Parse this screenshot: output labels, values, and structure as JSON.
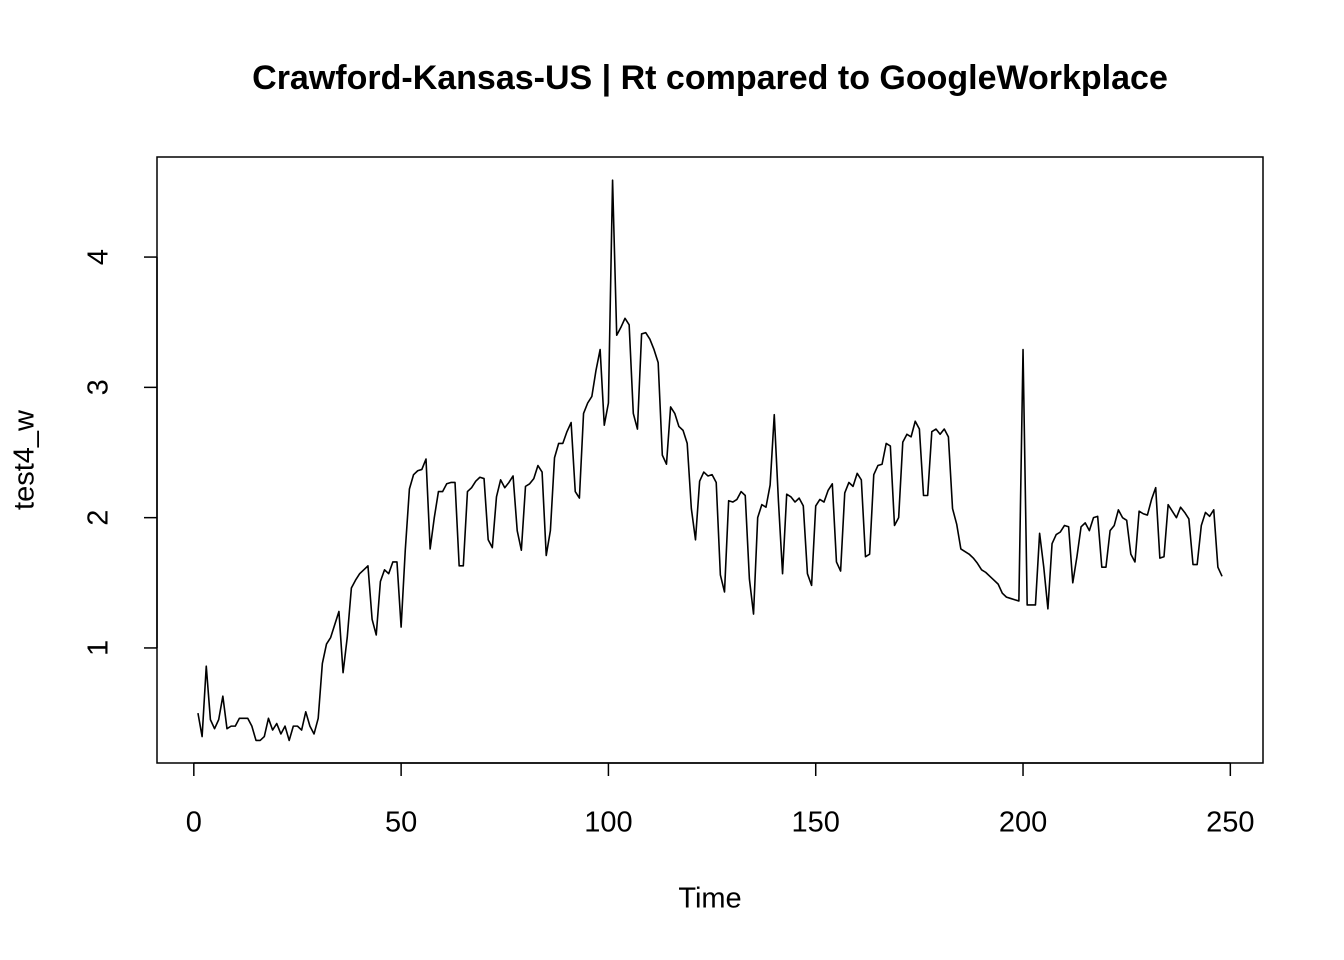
{
  "chart_data": {
    "type": "line",
    "title": "Crawford-Kansas-US | Rt compared to GoogleWorkplace",
    "xlabel": "Time",
    "ylabel": "test4_w",
    "color": "#000000",
    "xlim": [
      -8.88,
      257.88
    ],
    "ylim": [
      0.117,
      4.768
    ],
    "xticks": [
      0,
      50,
      100,
      150,
      200,
      250
    ],
    "yticks": [
      1,
      2,
      3,
      4
    ],
    "x": [
      1,
      2,
      3,
      4,
      5,
      6,
      7,
      8,
      9,
      10,
      11,
      12,
      13,
      14,
      15,
      16,
      17,
      18,
      19,
      20,
      21,
      22,
      23,
      24,
      25,
      26,
      27,
      28,
      29,
      30,
      31,
      32,
      33,
      34,
      35,
      36,
      37,
      38,
      39,
      40,
      41,
      42,
      43,
      44,
      45,
      46,
      47,
      48,
      49,
      50,
      51,
      52,
      53,
      54,
      55,
      56,
      57,
      58,
      59,
      60,
      61,
      62,
      63,
      64,
      65,
      66,
      67,
      68,
      69,
      70,
      71,
      72,
      73,
      74,
      75,
      76,
      77,
      78,
      79,
      80,
      81,
      82,
      83,
      84,
      85,
      86,
      87,
      88,
      89,
      90,
      91,
      92,
      93,
      94,
      95,
      96,
      97,
      98,
      99,
      100,
      101,
      102,
      103,
      104,
      105,
      106,
      107,
      108,
      109,
      110,
      111,
      112,
      113,
      114,
      115,
      116,
      117,
      118,
      119,
      120,
      121,
      122,
      123,
      124,
      125,
      126,
      127,
      128,
      129,
      130,
      131,
      132,
      133,
      134,
      135,
      136,
      137,
      138,
      139,
      140,
      141,
      142,
      143,
      144,
      145,
      146,
      147,
      148,
      149,
      150,
      151,
      152,
      153,
      154,
      155,
      156,
      157,
      158,
      159,
      160,
      161,
      162,
      163,
      164,
      165,
      166,
      167,
      168,
      169,
      170,
      171,
      172,
      173,
      174,
      175,
      176,
      177,
      178,
      179,
      180,
      181,
      182,
      183,
      184,
      185,
      186,
      187,
      188,
      189,
      190,
      191,
      192,
      193,
      194,
      195,
      196,
      197,
      198,
      199,
      200,
      201,
      202,
      203,
      204,
      205,
      206,
      207,
      208,
      209,
      210,
      211,
      212,
      213,
      214,
      215,
      216,
      217,
      218,
      219,
      220,
      221,
      222,
      223,
      224,
      225,
      226,
      227,
      228,
      229,
      230,
      231,
      232,
      233,
      234,
      235,
      236,
      237,
      238,
      239,
      240,
      241,
      242,
      243,
      244,
      245,
      246,
      247,
      248
    ],
    "values": [
      0.5,
      0.32,
      0.86,
      0.45,
      0.38,
      0.45,
      0.63,
      0.38,
      0.4,
      0.4,
      0.46,
      0.46,
      0.46,
      0.4,
      0.29,
      0.29,
      0.32,
      0.46,
      0.37,
      0.42,
      0.34,
      0.4,
      0.29,
      0.4,
      0.4,
      0.37,
      0.51,
      0.4,
      0.34,
      0.46,
      0.88,
      1.03,
      1.08,
      1.18,
      1.28,
      0.81,
      1.08,
      1.46,
      1.52,
      1.57,
      1.6,
      1.63,
      1.22,
      1.1,
      1.51,
      1.6,
      1.57,
      1.66,
      1.66,
      1.16,
      1.75,
      2.22,
      2.33,
      2.36,
      2.37,
      2.45,
      1.76,
      2.0,
      2.2,
      2.2,
      2.26,
      2.27,
      2.27,
      1.63,
      1.63,
      2.2,
      2.23,
      2.28,
      2.31,
      2.3,
      1.83,
      1.77,
      2.16,
      2.29,
      2.23,
      2.27,
      2.32,
      1.9,
      1.75,
      2.24,
      2.26,
      2.3,
      2.4,
      2.35,
      1.71,
      1.9,
      2.46,
      2.57,
      2.57,
      2.66,
      2.73,
      2.2,
      2.15,
      2.8,
      2.88,
      2.93,
      3.13,
      3.29,
      2.71,
      2.88,
      4.59,
      3.4,
      3.46,
      3.53,
      3.48,
      2.8,
      2.68,
      3.41,
      3.42,
      3.37,
      3.29,
      3.19,
      2.48,
      2.41,
      2.85,
      2.8,
      2.7,
      2.67,
      2.57,
      2.07,
      1.83,
      2.28,
      2.35,
      2.32,
      2.33,
      2.27,
      1.56,
      1.43,
      2.13,
      2.12,
      2.14,
      2.2,
      2.17,
      1.53,
      1.26,
      2.0,
      2.1,
      2.08,
      2.25,
      2.79,
      2.13,
      1.57,
      2.18,
      2.16,
      2.12,
      2.15,
      2.09,
      1.57,
      1.48,
      2.09,
      2.14,
      2.12,
      2.21,
      2.26,
      1.66,
      1.59,
      2.19,
      2.27,
      2.24,
      2.34,
      2.29,
      1.7,
      1.72,
      2.33,
      2.4,
      2.41,
      2.57,
      2.55,
      1.94,
      2.0,
      2.58,
      2.64,
      2.62,
      2.74,
      2.68,
      2.17,
      2.17,
      2.66,
      2.68,
      2.64,
      2.68,
      2.62,
      2.07,
      1.95,
      1.76,
      1.74,
      1.72,
      1.69,
      1.65,
      1.6,
      1.58,
      1.55,
      1.52,
      1.49,
      1.42,
      1.39,
      1.38,
      1.37,
      1.36,
      3.29,
      1.33,
      1.33,
      1.33,
      1.88,
      1.62,
      1.3,
      1.8,
      1.87,
      1.89,
      1.94,
      1.93,
      1.5,
      1.7,
      1.93,
      1.96,
      1.9,
      2.0,
      2.01,
      1.62,
      1.62,
      1.9,
      1.94,
      2.06,
      2.0,
      1.98,
      1.72,
      1.66,
      2.05,
      2.03,
      2.02,
      2.14,
      2.23,
      1.69,
      1.7,
      2.1,
      2.05,
      2.0,
      2.08,
      2.04,
      1.99,
      1.64,
      1.64,
      1.94,
      2.04,
      2.01,
      2.06,
      1.62,
      1.55
    ]
  }
}
